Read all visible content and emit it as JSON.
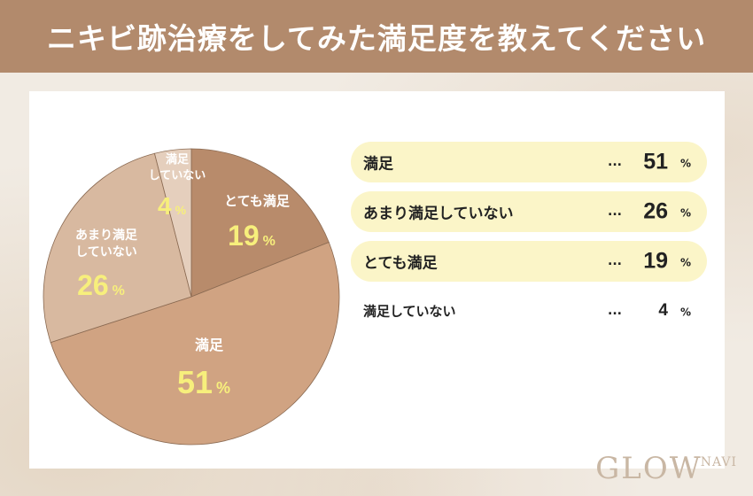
{
  "header": {
    "title": "ニキビ跡治療をしてみた満足度を教えてください"
  },
  "chart_data": {
    "type": "pie",
    "title": "ニキビ跡治療をしてみた満足度を教えてください",
    "percent_unit": "%",
    "slices": [
      {
        "label": "とても満足",
        "value": 19,
        "color": "#b88b6b",
        "label_lines": [
          "とても満足"
        ]
      },
      {
        "label": "満足",
        "value": 51,
        "color": "#d0a382",
        "label_lines": [
          "満足"
        ]
      },
      {
        "label": "あまり満足していない",
        "value": 26,
        "color": "#d8b9a0",
        "label_lines": [
          "あまり満足",
          "していない"
        ]
      },
      {
        "label": "満足していない",
        "value": 4,
        "color": "#e5cfbd",
        "label_lines": [
          "満足",
          "していない"
        ]
      }
    ],
    "label_text_color": "#ffffff",
    "value_text_color": "#f7ef7c"
  },
  "legend": {
    "dots": "...",
    "percent_unit": "%",
    "items": [
      {
        "label": "満足",
        "value": "51"
      },
      {
        "label": "あまり満足していない",
        "value": "26"
      },
      {
        "label": "とても満足",
        "value": "19"
      },
      {
        "label": "満足していない",
        "value": "4"
      }
    ]
  },
  "logo": {
    "main": "GLOW",
    "sub": "NAVI"
  }
}
